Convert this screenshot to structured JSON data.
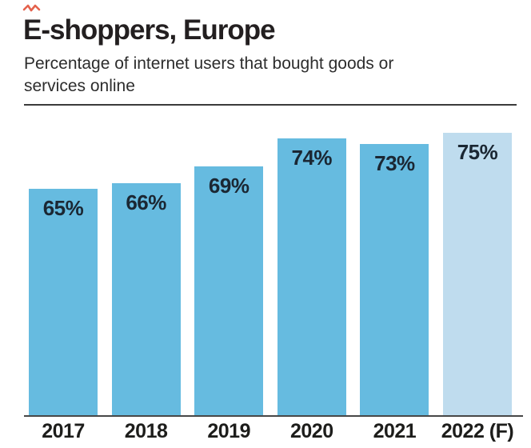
{
  "header": {
    "title": "E-shoppers, Europe",
    "subtitle": "Percentage of internet users that bought goods or services online"
  },
  "annotation": {
    "scribble_icon": "red-scribble-mark",
    "scribble_color": "#e0472e"
  },
  "chart_data": {
    "type": "bar",
    "title": "E-shoppers, Europe",
    "subtitle": "Percentage of internet users that bought goods or services online",
    "categories": [
      "2017",
      "2018",
      "2019",
      "2020",
      "2021",
      "2022 (F)"
    ],
    "values": [
      65,
      66,
      69,
      74,
      73,
      75
    ],
    "value_labels": [
      "65%",
      "66%",
      "69%",
      "74%",
      "73%",
      "75%"
    ],
    "value_suffix": "%",
    "forecast_index": 5,
    "bar_color": "#66bbe0",
    "forecast_bar_color": "#bfdcee",
    "value_label_color": "#1b2733",
    "tick_label_color": "#1d1d1b",
    "axis_line_color": "#474747",
    "grid": false,
    "legend": false,
    "y_axis_shown": false,
    "ylim": [
      0,
      100
    ]
  }
}
